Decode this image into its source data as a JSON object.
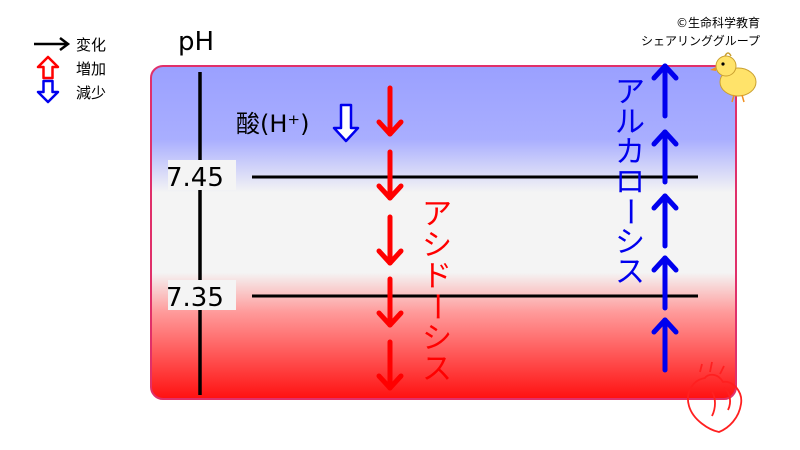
{
  "credit": {
    "line1": "©生命科学教育",
    "line2": "シェアリンググループ"
  },
  "legend": {
    "items": [
      {
        "icon": "black-right-arrow-icon",
        "label": "変化"
      },
      {
        "icon": "red-up-hollow-arrow-icon",
        "label": "増加"
      },
      {
        "icon": "blue-down-hollow-arrow-icon",
        "label": "減少"
      }
    ]
  },
  "axis": {
    "label": "pH",
    "tick_upper": "7.45",
    "tick_lower": "7.35"
  },
  "acid_label": "酸(H⁺)",
  "acidosis_label": "アシドーシス",
  "alkalosis_label": "アルカローシス",
  "colors": {
    "top_blue": "#9aa0ff",
    "mid_white": "#f4f4f4",
    "bottom_red": "#ff1010",
    "frame": "#e0306a",
    "red": "#ff0000",
    "blue": "#0000ee",
    "black": "#000000"
  },
  "decorations": [
    "chick-icon",
    "heart-icon"
  ]
}
